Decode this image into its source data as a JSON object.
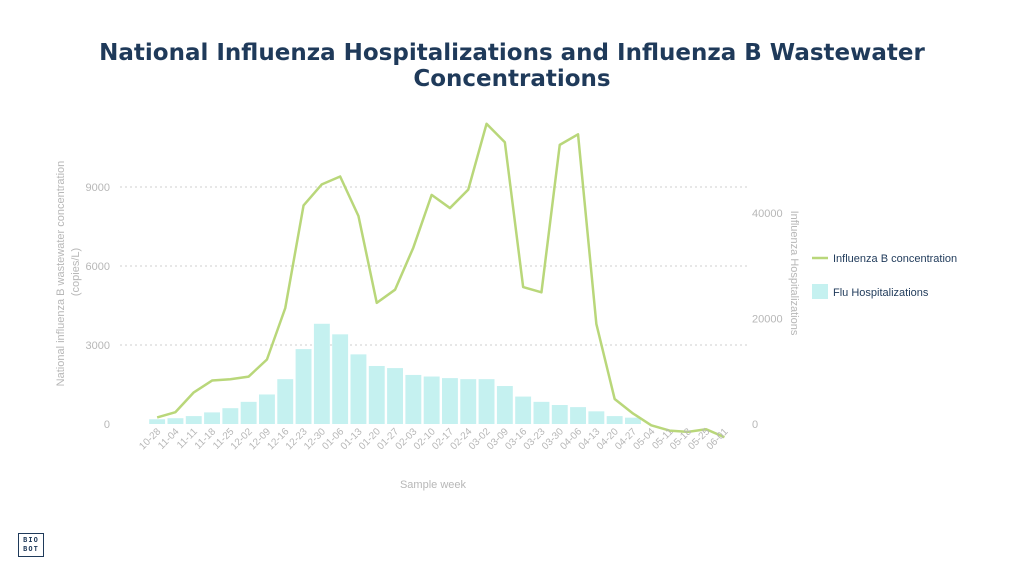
{
  "chart_data": {
    "type": "bar+line",
    "title": "National Influenza Hospitalizations and Influenza B Wastewater Concentrations",
    "xlabel": "Sample week",
    "ylabel_left": "National influenza B wastewater concentration (copies/L)",
    "ylabel_right": "Influenza Hospitalizations",
    "ylim_left": [
      0,
      11500
    ],
    "ylim_right": [
      0,
      50000
    ],
    "yticks_left": [
      0,
      3000,
      6000,
      9000
    ],
    "yticks_right": [
      0,
      20000,
      40000
    ],
    "grid": true,
    "legend_position": "right",
    "categories": [
      "10-28",
      "11-04",
      "11-11",
      "11-18",
      "11-25",
      "12-02",
      "12-09",
      "12-16",
      "12-23",
      "12-30",
      "01-06",
      "01-13",
      "01-20",
      "01-27",
      "02-03",
      "02-10",
      "02-17",
      "02-24",
      "03-02",
      "03-09",
      "03-16",
      "03-23",
      "03-30",
      "04-06",
      "04-13",
      "04-20",
      "04-27",
      "05-04",
      "05-11",
      "05-18",
      "05-25",
      "06-01"
    ],
    "series": [
      {
        "name": "Flu Hospitalizations",
        "kind": "bar",
        "axis": "right",
        "color": "#c5f1f0",
        "values": [
          900,
          1100,
          1500,
          2200,
          3000,
          4200,
          5600,
          8500,
          14200,
          19000,
          17000,
          13200,
          11000,
          10600,
          9300,
          9000,
          8700,
          8500,
          8500,
          7200,
          5200,
          4200,
          3600,
          3200,
          2400,
          1500,
          1200,
          null,
          null,
          null,
          null,
          null
        ]
      },
      {
        "name": "Influenza B concentration",
        "kind": "line",
        "axis": "left",
        "color": "#b9d77a",
        "values": [
          250,
          450,
          1200,
          1650,
          1700,
          1800,
          2450,
          4400,
          8300,
          9100,
          9400,
          7900,
          4600,
          5100,
          6700,
          8700,
          8200,
          8900,
          11400,
          10700,
          5200,
          5000,
          10600,
          11000,
          3800,
          950,
          400,
          -50,
          -250,
          -300,
          -200,
          -500
        ]
      }
    ]
  },
  "logo": {
    "line1": "BIO",
    "line2": "BOT"
  }
}
